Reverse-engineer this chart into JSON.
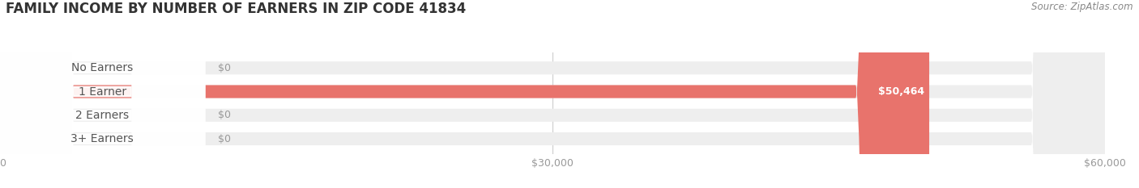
{
  "title": "FAMILY INCOME BY NUMBER OF EARNERS IN ZIP CODE 41834",
  "source": "Source: ZipAtlas.com",
  "categories": [
    "No Earners",
    "1 Earner",
    "2 Earners",
    "3+ Earners"
  ],
  "values": [
    0,
    50464,
    0,
    0
  ],
  "bar_colors": [
    "#f5c897",
    "#e8736c",
    "#a8bfe0",
    "#c9afd4"
  ],
  "bar_bg_color": "#eeeeee",
  "xlim": [
    0,
    60000
  ],
  "xticks": [
    0,
    30000,
    60000
  ],
  "xtick_labels": [
    "$0",
    "$30,000",
    "$60,000"
  ],
  "value_labels": [
    "$0",
    "$50,464",
    "$0",
    "$0"
  ],
  "bar_height": 0.55,
  "background_color": "#ffffff",
  "title_fontsize": 12,
  "label_fontsize": 10,
  "value_fontsize": 9,
  "source_fontsize": 8.5,
  "title_color": "#333333",
  "source_color": "#888888",
  "category_text_color": "#555555",
  "value_text_color_inside": "#ffffff",
  "value_text_color_outside": "#999999"
}
